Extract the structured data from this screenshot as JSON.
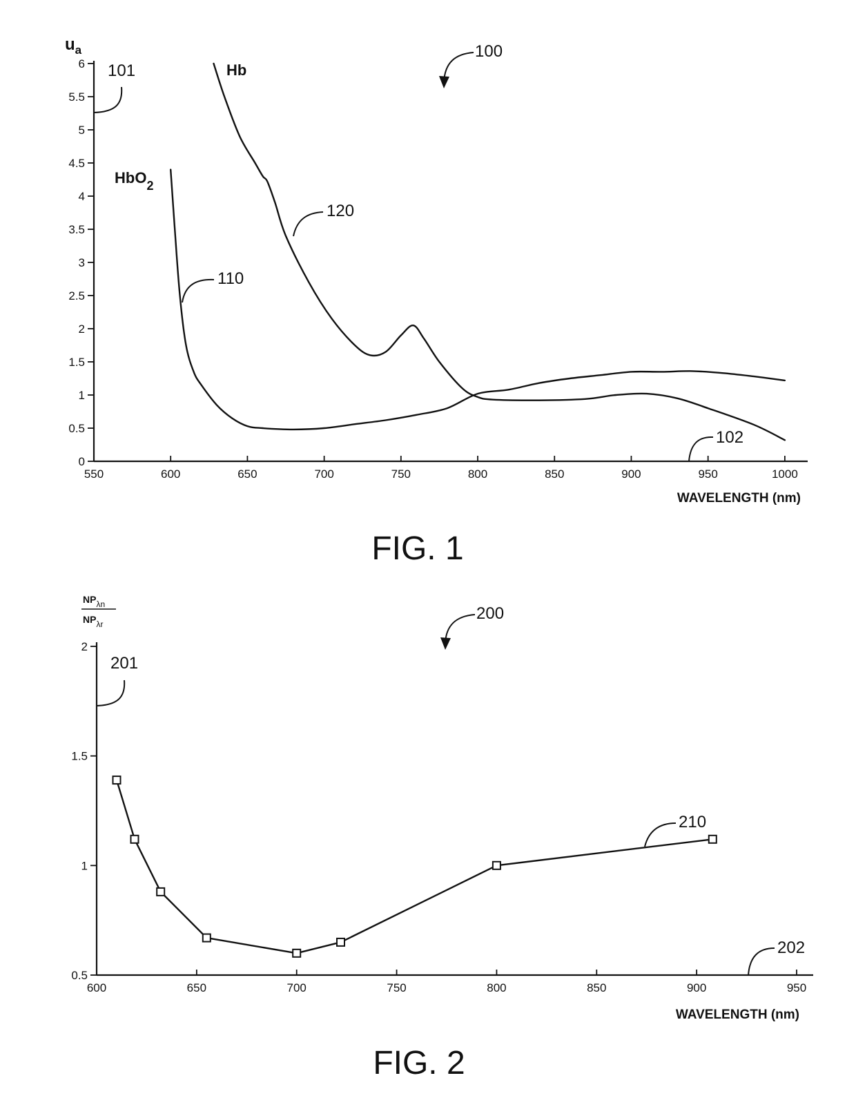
{
  "chart_data": [
    {
      "type": "line",
      "figure_label": "FIG. 1",
      "xlabel": "WAVELENGTH (nm)",
      "ylabel": "u",
      "ylabel_sub": "a",
      "xlim": [
        550,
        1005
      ],
      "ylim": [
        0,
        6
      ],
      "xticks": [
        "550",
        "600",
        "650",
        "700",
        "750",
        "800",
        "850",
        "900",
        "950",
        "1000"
      ],
      "yticks": [
        "0",
        "0.5",
        "1",
        "1.5",
        "2",
        "2.5",
        "3",
        "3.5",
        "4",
        "4.5",
        "5",
        "5.5",
        "6"
      ],
      "refs": {
        "figure": "100",
        "y_axis": "101",
        "x_axis": "102"
      },
      "series": [
        {
          "name": "HbO",
          "name_sub": "2",
          "ref": "110",
          "x": [
            600,
            603,
            606,
            610,
            615,
            620,
            630,
            640,
            650,
            660,
            680,
            700,
            720,
            740,
            760,
            780,
            800,
            820,
            840,
            860,
            880,
            900,
            920,
            940,
            960,
            980,
            1000
          ],
          "y": [
            4.4,
            3.4,
            2.5,
            1.75,
            1.35,
            1.15,
            0.85,
            0.65,
            0.53,
            0.5,
            0.48,
            0.5,
            0.56,
            0.62,
            0.7,
            0.8,
            1.02,
            1.08,
            1.18,
            1.25,
            1.3,
            1.35,
            1.35,
            1.36,
            1.33,
            1.28,
            1.22
          ]
        },
        {
          "name": "Hb",
          "ref": "120",
          "x": [
            628,
            635,
            645,
            655,
            660,
            663,
            668,
            675,
            690,
            705,
            720,
            730,
            740,
            750,
            758,
            765,
            775,
            790,
            800,
            810,
            840,
            870,
            890,
            910,
            930,
            950,
            980,
            1000
          ],
          "y": [
            6.0,
            5.5,
            4.9,
            4.5,
            4.3,
            4.22,
            3.9,
            3.4,
            2.7,
            2.15,
            1.75,
            1.6,
            1.65,
            1.9,
            2.05,
            1.85,
            1.5,
            1.1,
            0.97,
            0.93,
            0.92,
            0.94,
            1.0,
            1.02,
            0.95,
            0.8,
            0.55,
            0.32
          ]
        }
      ]
    },
    {
      "type": "line",
      "figure_label": "FIG. 2",
      "xlabel": "WAVELENGTH (nm)",
      "ylabel_num": "NP",
      "ylabel_num_sub": "λn",
      "ylabel_den": "NP",
      "ylabel_den_sub": "λr",
      "xlim": [
        600,
        950
      ],
      "ylim": [
        0.5,
        2
      ],
      "xticks": [
        "600",
        "650",
        "700",
        "750",
        "800",
        "850",
        "900",
        "950"
      ],
      "yticks": [
        "0.5",
        "1",
        "1.5",
        "2"
      ],
      "refs": {
        "figure": "200",
        "y_axis": "201",
        "x_axis": "202"
      },
      "series": [
        {
          "ref": "210",
          "x": [
            610,
            619,
            632,
            655,
            700,
            722,
            800,
            908
          ],
          "y": [
            1.39,
            1.12,
            0.88,
            0.67,
            0.6,
            0.65,
            1.0,
            1.12
          ]
        }
      ]
    }
  ]
}
